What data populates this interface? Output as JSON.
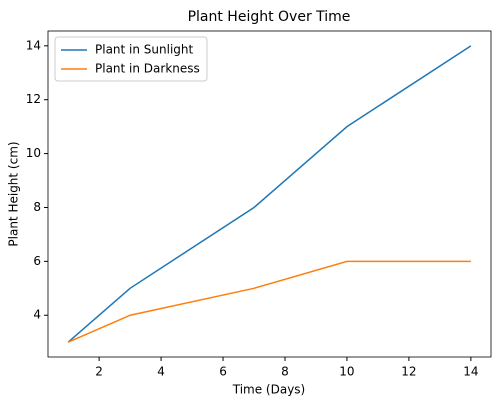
{
  "chart_data": {
    "type": "line",
    "title": "Plant Height Over Time",
    "x_label": "Time (Days)",
    "y_label": "Plant Height (cm)",
    "x": [
      1,
      3,
      7,
      10,
      14
    ],
    "series": [
      {
        "name": "Plant in Sunlight",
        "color": "#1f77b4",
        "values": [
          3,
          5,
          8,
          11,
          14
        ]
      },
      {
        "name": "Plant in Darkness",
        "color": "#ff7f0e",
        "values": [
          3,
          4,
          5,
          6,
          6
        ]
      }
    ],
    "xlim": [
      0.35,
      14.65
    ],
    "ylim": [
      2.45,
      14.55
    ],
    "xticks": [
      2,
      4,
      6,
      8,
      10,
      12,
      14
    ],
    "yticks": [
      4,
      6,
      8,
      10,
      12,
      14
    ],
    "legend": "upper left"
  }
}
